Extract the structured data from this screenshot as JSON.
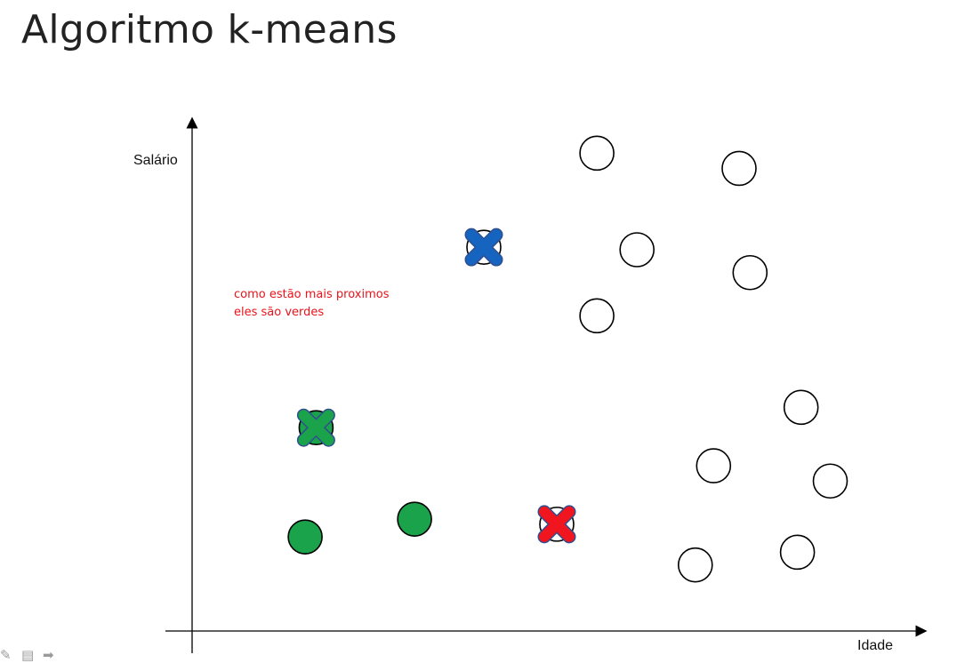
{
  "slide": {
    "title": "Algoritmo k-means",
    "annotation_lines": [
      "como estão mais proximos",
      "eles são verdes"
    ]
  },
  "colors": {
    "empty": "#ffffff",
    "green": "#1aa34a",
    "blue": "#1565c0",
    "red": "#f0151f",
    "annotation": "#e8131b",
    "axis": "#000000"
  },
  "chart_data": {
    "type": "scatter",
    "xlabel": "Idade",
    "ylabel": "Salário",
    "xlim": [
      0,
      100
    ],
    "ylim": [
      0,
      100
    ],
    "points": [
      {
        "x": 15.5,
        "y": 18.5,
        "cluster": "green"
      },
      {
        "x": 30.5,
        "y": 22.0,
        "cluster": "green"
      },
      {
        "x": 17.0,
        "y": 40.0,
        "cluster": "green"
      },
      {
        "x": 40.0,
        "y": 75.5,
        "cluster": "none"
      },
      {
        "x": 50.0,
        "y": 21.0,
        "cluster": "none"
      },
      {
        "x": 55.5,
        "y": 94.0,
        "cluster": "none"
      },
      {
        "x": 61.0,
        "y": 75.0,
        "cluster": "none"
      },
      {
        "x": 55.5,
        "y": 62.0,
        "cluster": "none"
      },
      {
        "x": 75.0,
        "y": 91.0,
        "cluster": "none"
      },
      {
        "x": 76.5,
        "y": 70.5,
        "cluster": "none"
      },
      {
        "x": 83.5,
        "y": 44.0,
        "cluster": "none"
      },
      {
        "x": 71.5,
        "y": 32.5,
        "cluster": "none"
      },
      {
        "x": 87.5,
        "y": 29.5,
        "cluster": "none"
      },
      {
        "x": 69.0,
        "y": 13.0,
        "cluster": "none"
      },
      {
        "x": 83.0,
        "y": 15.5,
        "cluster": "none"
      }
    ],
    "centroids": [
      {
        "x": 40.0,
        "y": 75.5,
        "color": "blue"
      },
      {
        "x": 17.0,
        "y": 40.0,
        "color": "green"
      },
      {
        "x": 50.0,
        "y": 21.0,
        "color": "red"
      }
    ]
  },
  "toolbar": {
    "icons": [
      "pen-icon",
      "notes-icon",
      "arrow-right-icon"
    ]
  }
}
